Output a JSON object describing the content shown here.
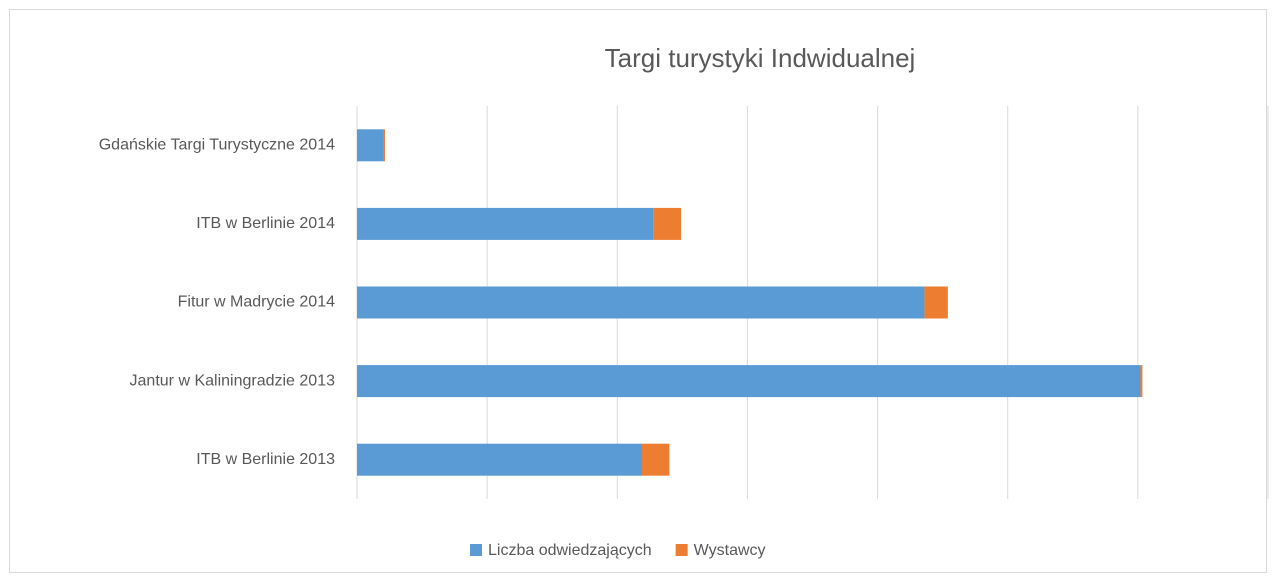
{
  "chart_data": {
    "type": "bar",
    "orientation": "horizontal",
    "stacked": true,
    "title": "Targi turystyki Indwidualnej",
    "categories": [
      "Gdańskie Targi Turystyczne 2014",
      "ITB w Berlinie 2014",
      "Fitur w Madrycie 2014",
      "Jantur w Kaliningradzie 2013",
      "ITB w Berlinie 2013"
    ],
    "series": [
      {
        "name": "Liczba odwiedzających",
        "color": "#5b9bd5",
        "values": [
          0.2,
          2.28,
          4.36,
          6.02,
          2.19
        ]
      },
      {
        "name": "Wystawcy",
        "color": "#ed7d31",
        "values": [
          0.015,
          0.21,
          0.18,
          0.015,
          0.21
        ]
      }
    ],
    "xlim": [
      0,
      7
    ],
    "xticks": [
      0,
      1,
      2,
      3,
      4,
      5,
      6,
      7
    ],
    "grid": true,
    "legend": "bottom"
  }
}
